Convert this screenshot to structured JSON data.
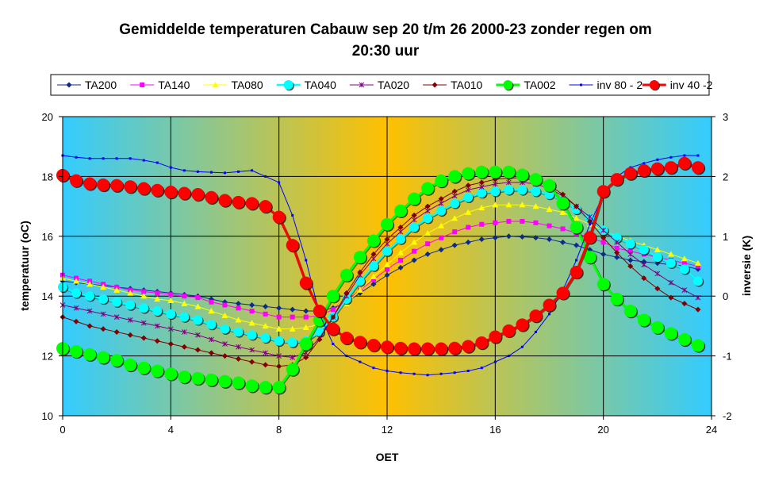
{
  "chart_data": {
    "type": "line",
    "title_line1": "Gemiddelde temperaturen Cabauw sep 20 t/m 26 2000-23 zonder regen om",
    "title_line2": "20:30 uur",
    "xlabel": "OET",
    "ylabel": "temperatuur (oC)",
    "y2label": "inversie (K)",
    "xlim": [
      0,
      24
    ],
    "ylim": [
      10,
      20
    ],
    "y2lim": [
      -2,
      3
    ],
    "x_ticks": [
      0,
      4,
      8,
      12,
      16,
      20,
      24
    ],
    "y_ticks": [
      10,
      12,
      14,
      16,
      18,
      20
    ],
    "y2_ticks": [
      -2,
      -1,
      0,
      1,
      2,
      3
    ],
    "grid": true,
    "legend_position": "top",
    "background": {
      "edge_color": "#33CCFF",
      "center_color": "#FFC000"
    },
    "x": [
      0,
      0.5,
      1,
      1.5,
      2,
      2.5,
      3,
      3.5,
      4,
      4.5,
      5,
      5.5,
      6,
      6.5,
      7,
      7.5,
      8,
      8.5,
      9,
      9.5,
      10,
      10.5,
      11,
      11.5,
      12,
      12.5,
      13,
      13.5,
      14,
      14.5,
      15,
      15.5,
      16,
      16.5,
      17,
      17.5,
      18,
      18.5,
      19,
      19.5,
      20,
      20.5,
      21,
      21.5,
      22,
      22.5,
      23,
      23.5
    ],
    "series": [
      {
        "name": "TA200",
        "axis": "left",
        "color": "#0B2A8A",
        "marker": "diamond",
        "marker_size": 3,
        "line_width": 1,
        "values": [
          14.5,
          14.45,
          14.4,
          14.35,
          14.3,
          14.25,
          14.2,
          14.15,
          14.1,
          14.05,
          14.0,
          13.9,
          13.8,
          13.75,
          13.7,
          13.65,
          13.6,
          13.55,
          13.5,
          13.5,
          13.6,
          13.8,
          14.1,
          14.4,
          14.7,
          14.95,
          15.2,
          15.4,
          15.55,
          15.7,
          15.8,
          15.9,
          15.95,
          16.0,
          15.98,
          15.95,
          15.9,
          15.8,
          15.7,
          15.55,
          15.4,
          15.3,
          15.2,
          15.15,
          15.1,
          15.05,
          15.0,
          14.9
        ]
      },
      {
        "name": "TA140",
        "axis": "left",
        "color": "#FF00FF",
        "marker": "square",
        "marker_size": 3,
        "line_width": 1,
        "values": [
          14.7,
          14.6,
          14.5,
          14.4,
          14.3,
          14.2,
          14.15,
          14.1,
          14.05,
          14.0,
          13.95,
          13.8,
          13.7,
          13.6,
          13.5,
          13.4,
          13.3,
          13.3,
          13.3,
          13.35,
          13.55,
          13.85,
          14.2,
          14.55,
          14.9,
          15.2,
          15.5,
          15.75,
          15.95,
          16.15,
          16.3,
          16.4,
          16.45,
          16.5,
          16.5,
          16.45,
          16.35,
          16.25,
          16.1,
          15.95,
          15.8,
          15.6,
          15.5,
          15.4,
          15.3,
          15.2,
          15.1,
          15.0
        ]
      },
      {
        "name": "TA080",
        "axis": "left",
        "color": "#FFFF00",
        "marker": "triangle",
        "marker_size": 4,
        "line_width": 1,
        "values": [
          14.6,
          14.5,
          14.4,
          14.3,
          14.2,
          14.1,
          14.0,
          13.9,
          13.85,
          13.75,
          13.65,
          13.5,
          13.35,
          13.2,
          13.1,
          13.0,
          12.9,
          12.9,
          12.95,
          13.05,
          13.35,
          13.75,
          14.2,
          14.65,
          15.05,
          15.45,
          15.8,
          16.1,
          16.35,
          16.6,
          16.8,
          16.95,
          17.05,
          17.05,
          17.05,
          17.0,
          16.9,
          16.8,
          16.6,
          16.4,
          16.2,
          16.0,
          15.85,
          15.7,
          15.55,
          15.4,
          15.25,
          15.1
        ]
      },
      {
        "name": "TA040",
        "axis": "left",
        "color": "#00FFFF",
        "marker": "circle",
        "marker_size": 6,
        "line_width": 2.5,
        "values": [
          14.3,
          14.1,
          14.0,
          13.9,
          13.8,
          13.7,
          13.6,
          13.5,
          13.4,
          13.3,
          13.2,
          13.05,
          12.9,
          12.8,
          12.7,
          12.6,
          12.5,
          12.45,
          12.5,
          12.8,
          13.3,
          13.9,
          14.5,
          15.0,
          15.5,
          15.9,
          16.3,
          16.6,
          16.85,
          17.1,
          17.3,
          17.45,
          17.5,
          17.55,
          17.55,
          17.5,
          17.4,
          17.2,
          16.9,
          16.6,
          16.2,
          15.95,
          15.75,
          15.55,
          15.3,
          15.1,
          14.9,
          14.5
        ]
      },
      {
        "name": "TA020",
        "axis": "left",
        "color": "#800080",
        "marker": "star",
        "marker_size": 3,
        "line_width": 1,
        "values": [
          13.7,
          13.6,
          13.5,
          13.4,
          13.3,
          13.2,
          13.1,
          13.0,
          12.9,
          12.8,
          12.7,
          12.55,
          12.4,
          12.3,
          12.2,
          12.1,
          12.0,
          11.95,
          12.1,
          12.6,
          13.3,
          14.0,
          14.7,
          15.25,
          15.75,
          16.15,
          16.55,
          16.85,
          17.1,
          17.35,
          17.55,
          17.65,
          17.75,
          17.8,
          17.8,
          17.75,
          17.6,
          17.35,
          17.0,
          16.65,
          16.2,
          15.8,
          15.4,
          15.05,
          14.75,
          14.45,
          14.2,
          13.95
        ]
      },
      {
        "name": "TA010",
        "axis": "left",
        "color": "#800000",
        "marker": "diamond",
        "marker_size": 3,
        "line_width": 1,
        "values": [
          13.3,
          13.15,
          13.0,
          12.9,
          12.8,
          12.7,
          12.6,
          12.5,
          12.4,
          12.3,
          12.2,
          12.1,
          12.0,
          11.9,
          11.8,
          11.7,
          11.65,
          11.7,
          11.95,
          12.55,
          13.3,
          14.1,
          14.8,
          15.4,
          15.9,
          16.3,
          16.7,
          17.0,
          17.25,
          17.5,
          17.7,
          17.8,
          17.9,
          17.95,
          17.95,
          17.85,
          17.7,
          17.4,
          17.0,
          16.5,
          15.95,
          15.45,
          15.0,
          14.6,
          14.25,
          13.95,
          13.75,
          13.55
        ]
      },
      {
        "name": "TA002",
        "axis": "left",
        "color": "#00FF00",
        "marker": "circle",
        "marker_size": 8,
        "line_width": 3,
        "values": [
          12.25,
          12.15,
          12.05,
          11.95,
          11.85,
          11.7,
          11.6,
          11.5,
          11.4,
          11.3,
          11.25,
          11.2,
          11.15,
          11.1,
          11.0,
          10.95,
          10.95,
          11.55,
          12.4,
          13.2,
          14.0,
          14.7,
          15.3,
          15.85,
          16.4,
          16.85,
          17.25,
          17.6,
          17.85,
          18.0,
          18.1,
          18.15,
          18.15,
          18.15,
          18.05,
          17.9,
          17.7,
          17.1,
          16.3,
          15.3,
          14.4,
          13.9,
          13.5,
          13.2,
          12.95,
          12.75,
          12.55,
          12.35
        ]
      },
      {
        "name": "inv 80 - 2",
        "axis": "right",
        "color": "#0000FF",
        "marker": "dot",
        "marker_size": 1.5,
        "line_width": 1,
        "values": [
          2.35,
          2.32,
          2.3,
          2.3,
          2.3,
          2.3,
          2.27,
          2.23,
          2.15,
          2.1,
          2.08,
          2.07,
          2.06,
          2.08,
          2.1,
          2.0,
          1.9,
          1.35,
          0.6,
          -0.3,
          -0.8,
          -1.0,
          -1.1,
          -1.2,
          -1.25,
          -1.28,
          -1.3,
          -1.32,
          -1.3,
          -1.28,
          -1.25,
          -1.2,
          -1.1,
          -1.0,
          -0.85,
          -0.6,
          -0.3,
          0.1,
          0.6,
          1.2,
          1.7,
          2.0,
          2.15,
          2.22,
          2.28,
          2.32,
          2.35,
          2.35
        ]
      },
      {
        "name": "inv 40 -2",
        "axis": "right",
        "color": "#FF0000",
        "marker": "circle",
        "marker_size": 8,
        "line_width": 3,
        "values": [
          2.02,
          1.93,
          1.88,
          1.86,
          1.85,
          1.83,
          1.8,
          1.77,
          1.74,
          1.72,
          1.7,
          1.65,
          1.6,
          1.57,
          1.55,
          1.5,
          1.32,
          0.85,
          0.22,
          -0.25,
          -0.55,
          -0.7,
          -0.77,
          -0.82,
          -0.85,
          -0.87,
          -0.88,
          -0.88,
          -0.88,
          -0.87,
          -0.84,
          -0.78,
          -0.68,
          -0.58,
          -0.48,
          -0.33,
          -0.15,
          0.05,
          0.4,
          0.98,
          1.75,
          1.95,
          2.05,
          2.1,
          2.13,
          2.15,
          2.22,
          2.15
        ]
      }
    ]
  }
}
